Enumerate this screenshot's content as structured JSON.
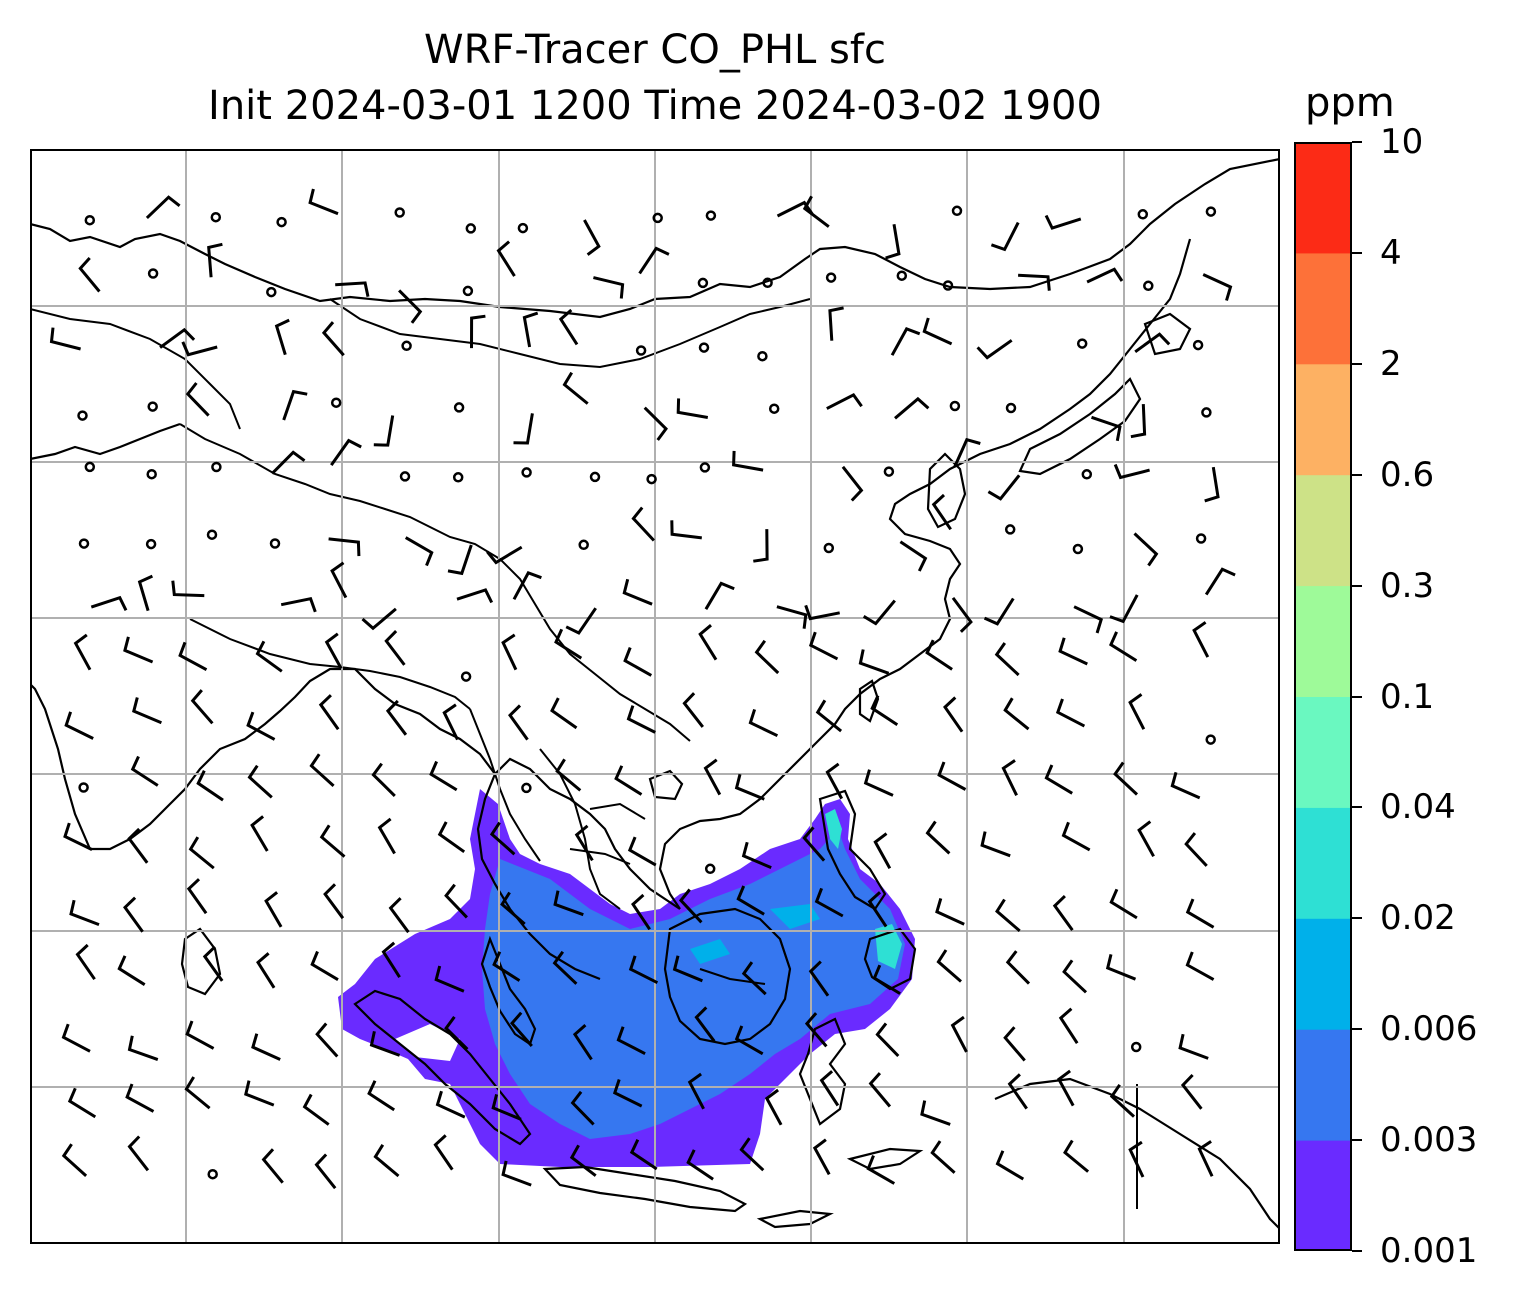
{
  "title": {
    "line1": "WRF-Tracer CO_PHL sfc",
    "line2": "Init 2024-03-01 1200 Time 2024-03-02 1900"
  },
  "colorbar": {
    "unit": "ppm",
    "ticks": [
      "0.001",
      "0.003",
      "0.006",
      "0.02",
      "0.04",
      "0.1",
      "0.3",
      "0.6",
      "2",
      "4",
      "10"
    ],
    "colors": [
      "#6a2bff",
      "#3677f0",
      "#00b0ea",
      "#2ee0d4",
      "#6af8c0",
      "#9efa99",
      "#cde287",
      "#fdb163",
      "#fd7139",
      "#fc2b16"
    ]
  },
  "map": {
    "projection": "PlateCarree",
    "lon_range": [
      60,
      140
    ],
    "lat_range": [
      -20,
      50
    ],
    "gridlines": true,
    "gridline_color": "#b0b0b0",
    "coastline_color": "#000000",
    "wind_barb_color": "#000000",
    "field": "CO_PHL tracer concentration",
    "plume_colors": [
      "#6a2bff",
      "#3677f0",
      "#2ee0d4"
    ]
  }
}
